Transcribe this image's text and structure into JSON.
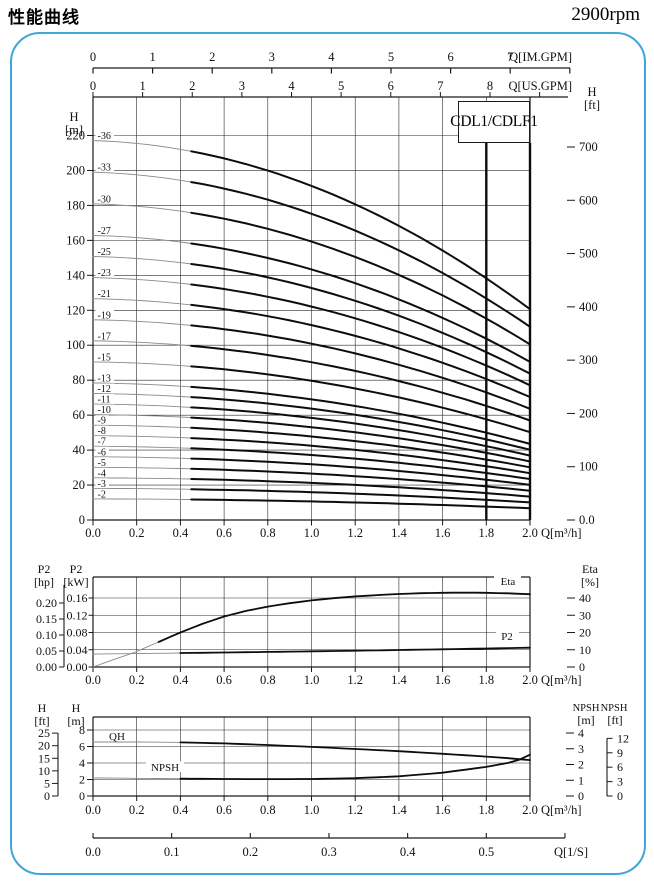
{
  "header": {
    "title": "性能曲线",
    "rpm": "2900rpm"
  },
  "model_box": {
    "label": "CDL1/CDLF1"
  },
  "colors": {
    "frame": "#1a1a1a",
    "grid": "#2b2b2b",
    "curve": "#0d0d0d",
    "curve_thin": "#8a8a8a",
    "border_blue": "#42a5d8",
    "background": "#ffffff"
  },
  "chart_data": [
    {
      "type": "line",
      "name": "head-capacity",
      "title": "CDL1/CDLF1",
      "x_axis": {
        "label": "Q[m³/h]",
        "min": 0,
        "max": 2.0,
        "tick_labels": [
          "0.0",
          "0.2",
          "0.4",
          "0.6",
          "0.8",
          "1.0",
          "1.2",
          "1.4",
          "1.6",
          "1.8",
          "2.0"
        ]
      },
      "aux_x_axes": [
        {
          "label": "Q[IM.GPM]",
          "tick_labels": [
            "0",
            "1",
            "2",
            "3",
            "4",
            "5",
            "6",
            "7"
          ],
          "gpm_per_m3h": 3.666
        },
        {
          "label": "Q[US.GPM]",
          "tick_labels": [
            "0",
            "1",
            "2",
            "3",
            "4",
            "5",
            "6",
            "7",
            "8"
          ],
          "gpm_per_m3h": 4.403
        }
      ],
      "y_axis_left": {
        "name": "H",
        "unit": "[m]",
        "min": 0,
        "max": 242,
        "grid_step": 20,
        "tick_labels": [
          "0",
          "20",
          "40",
          "60",
          "80",
          "100",
          "120",
          "140",
          "160",
          "180",
          "200",
          "220"
        ]
      },
      "y_axis_right": {
        "name": "H",
        "unit": "[ft]",
        "tick_labels": [
          "0.0",
          "100",
          "200",
          "300",
          "400",
          "500",
          "600",
          "700"
        ]
      },
      "marker_lines_q": [
        1.8,
        2.0
      ],
      "stage_curves": {
        "labels": [
          "-2",
          "-3",
          "-4",
          "-5",
          "-6",
          "-7",
          "-8",
          "-9",
          "-10",
          "-11",
          "-12",
          "-13",
          "-15",
          "-17",
          "-19",
          "-21",
          "-23",
          "-25",
          "-27",
          "-30",
          "-33",
          "-36"
        ],
        "stages": [
          2,
          3,
          4,
          5,
          6,
          7,
          8,
          9,
          10,
          11,
          12,
          13,
          15,
          17,
          19,
          21,
          23,
          25,
          27,
          30,
          33,
          36
        ],
        "per_stage_head_poly": {
          "h0": 6.03,
          "c1": -0.1,
          "c2": -0.62
        },
        "per_stage_head_samples": {
          "q": [
            0,
            0.25,
            0.5,
            0.75,
            1.0,
            1.25,
            1.5,
            1.75,
            2.0
          ],
          "h_m": [
            6.03,
            5.97,
            5.83,
            5.61,
            5.31,
            4.94,
            4.49,
            3.96,
            3.35
          ]
        }
      }
    },
    {
      "type": "line",
      "name": "power-efficiency",
      "x_axis": {
        "label": "Q[m³/h]",
        "min": 0,
        "max": 2.0,
        "tick_labels": [
          "0.0",
          "0.2",
          "0.4",
          "0.6",
          "0.8",
          "1.0",
          "1.2",
          "1.4",
          "1.6",
          "1.8",
          "2.0"
        ]
      },
      "y_axis_left_kw": {
        "name": "P2",
        "unit": "[kW]",
        "tick_labels": [
          "0.00",
          "0.04",
          "0.08",
          "0.12",
          "0.16"
        ],
        "tick_step": 0.04
      },
      "y_axis_left_hp": {
        "name": "P2",
        "unit": "[hp]",
        "tick_labels": [
          "0.00",
          "0.05",
          "0.10",
          "0.15",
          "0.20"
        ],
        "tick_step": 0.05
      },
      "y_axis_right": {
        "name": "Eta",
        "unit": "[%]",
        "tick_labels": [
          "0",
          "10",
          "20",
          "30",
          "40"
        ],
        "tick_step": 10
      },
      "series": [
        {
          "name": "Eta",
          "axis": "right",
          "q": [
            0,
            0.1,
            0.2,
            0.3,
            0.4,
            0.5,
            0.6,
            0.7,
            0.8,
            0.9,
            1.0,
            1.1,
            1.2,
            1.3,
            1.4,
            1.5,
            1.6,
            1.7,
            1.8,
            1.9,
            2.0
          ],
          "values": [
            0,
            4.5,
            9,
            14.5,
            20,
            25,
            29.3,
            32.5,
            35,
            37,
            38.6,
            39.9,
            40.9,
            41.7,
            42.3,
            42.8,
            43,
            43.1,
            43,
            42.7,
            42.2
          ]
        },
        {
          "name": "P2",
          "axis": "left_kw",
          "q": [
            0,
            0.2,
            0.4,
            0.6,
            0.8,
            1.0,
            1.2,
            1.4,
            1.6,
            1.8,
            2.0
          ],
          "values": [
            0.03,
            0.0312,
            0.0324,
            0.0336,
            0.0349,
            0.0363,
            0.0378,
            0.0394,
            0.0411,
            0.0429,
            0.0448
          ]
        }
      ]
    },
    {
      "type": "line",
      "name": "qh-npsh",
      "x_axis": {
        "label": "Q[m³/h]",
        "min": 0,
        "max": 2.0,
        "tick_labels": [
          "0.0",
          "0.2",
          "0.4",
          "0.6",
          "0.8",
          "1.0",
          "1.2",
          "1.4",
          "1.6",
          "1.8",
          "2.0"
        ]
      },
      "lps_axis": {
        "label": "Q[1/S]",
        "tick_labels": [
          "0.0",
          "0.1",
          "0.2",
          "0.3",
          "0.4",
          "0.5"
        ]
      },
      "y_axis_left_m": {
        "name": "H",
        "unit": "[m]",
        "tick_labels": [
          "0",
          "2",
          "4",
          "6",
          "8"
        ]
      },
      "y_axis_left_ft": {
        "name": "H",
        "unit": "[ft]",
        "tick_labels": [
          "0",
          "5",
          "10",
          "15",
          "20",
          "25"
        ]
      },
      "y_axis_right_m": {
        "name": "NPSH",
        "unit": "[m]",
        "tick_labels": [
          "0",
          "1",
          "2",
          "3",
          "4"
        ]
      },
      "y_axis_right_ft": {
        "name": "NPSH",
        "unit": "[ft]",
        "tick_labels": [
          "0",
          "3",
          "6",
          "9",
          "12"
        ]
      },
      "series": [
        {
          "name": "QH",
          "axis": "left_m",
          "q": [
            0,
            0.2,
            0.4,
            0.6,
            0.8,
            1.0,
            1.2,
            1.4,
            1.6,
            1.8,
            1.9,
            2.0
          ],
          "values": [
            6.55,
            6.55,
            6.5,
            6.37,
            6.18,
            5.95,
            5.7,
            5.43,
            5.12,
            4.78,
            4.58,
            4.35
          ]
        },
        {
          "name": "NPSH",
          "axis": "right_m",
          "q": [
            0,
            0.2,
            0.4,
            0.6,
            0.8,
            1.0,
            1.2,
            1.4,
            1.6,
            1.8,
            1.9,
            1.95,
            2.0
          ],
          "values": [
            1.15,
            1.12,
            1.1,
            1.08,
            1.07,
            1.08,
            1.13,
            1.25,
            1.48,
            1.85,
            2.1,
            2.3,
            2.62
          ]
        }
      ]
    }
  ]
}
